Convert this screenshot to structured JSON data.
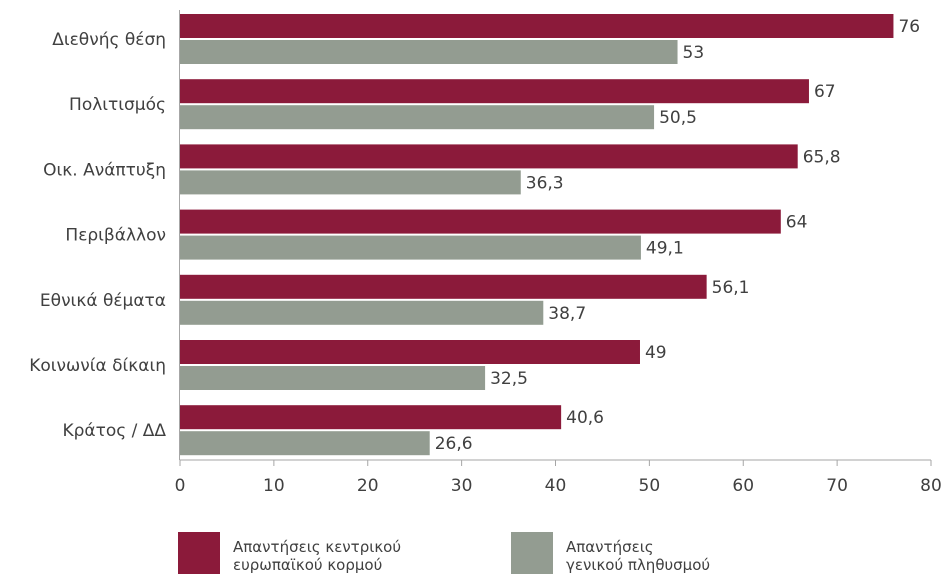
{
  "chart_data": {
    "type": "bar",
    "orientation": "horizontal",
    "categories": [
      "Διεθνής θέση",
      "Πολιτισμός",
      "Οικ. Ανάπτυξη",
      "Περιβάλλον",
      "Εθνικά θέματα",
      "Κοινωνία δίκαιη",
      "Κράτος / ΔΔ"
    ],
    "series": [
      {
        "name": "Απαντήσεις κεντρικού ευρωπαϊκού κορμού",
        "legend_lines": [
          "Απαντήσεις κεντρικού",
          "ευρωπαϊκού κορμού"
        ],
        "color": "#8B1A3A",
        "values": [
          76,
          67,
          65.8,
          64,
          56.1,
          49,
          40.6
        ],
        "labels": [
          "76",
          "67",
          "65,8",
          "64",
          "56,1",
          "49",
          "40,6"
        ]
      },
      {
        "name": "Απαντήσεις γενικού πληθυσμού",
        "legend_lines": [
          "Απαντήσεις",
          "γενικού πληθυσμού"
        ],
        "color": "#939C91",
        "values": [
          53,
          50.5,
          36.3,
          49.1,
          38.7,
          32.5,
          26.6
        ],
        "labels": [
          "53",
          "50,5",
          "36,3",
          "49,1",
          "38,7",
          "32,5",
          "26,6"
        ]
      }
    ],
    "xlim": [
      0,
      80
    ],
    "xticks": [
      "0",
      "10",
      "20",
      "30",
      "40",
      "50",
      "60",
      "70",
      "80"
    ],
    "xtick_values": [
      0,
      10,
      20,
      30,
      40,
      50,
      60,
      70,
      80
    ],
    "title": "",
    "xlabel": "",
    "ylabel": "",
    "grid": false,
    "legend_position": "bottom-left",
    "axis_color": "#A6A6A6"
  }
}
